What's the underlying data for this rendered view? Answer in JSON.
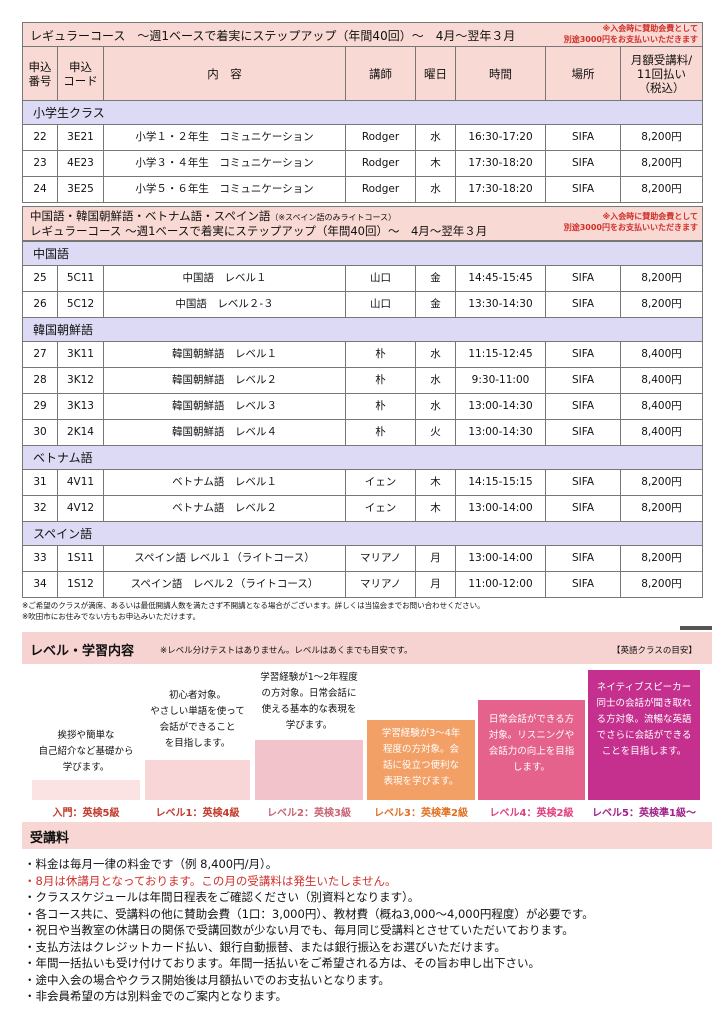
{
  "section1": {
    "title": "レギュラーコース　～週1ベースで着実にステップアップ（年間40回）～　4月～翌年３月",
    "note": [
      "※入会時に賛助会費として",
      "別途3000円をお支払いいただきます"
    ]
  },
  "columns": [
    [
      "申込",
      "番号"
    ],
    [
      "申込",
      "コード"
    ],
    [
      "内　容"
    ],
    [
      "講師"
    ],
    [
      "曜日"
    ],
    [
      "時間"
    ],
    [
      "場所"
    ],
    [
      "月額受講料/",
      "11回払い",
      "（税込）"
    ]
  ],
  "section1_groups": [
    {
      "name": "小学生クラス",
      "rows": [
        [
          "22",
          "3E21",
          "小学１・２年生　コミュニケーション",
          "Rodger",
          "水",
          "16:30-17:20",
          "SIFA",
          "8,200円"
        ],
        [
          "23",
          "4E23",
          "小学３・４年生　コミュニケーション",
          "Rodger",
          "木",
          "17:30-18:20",
          "SIFA",
          "8,200円"
        ],
        [
          "24",
          "3E25",
          "小学５・６年生　コミュニケーション",
          "Rodger",
          "水",
          "17:30-18:20",
          "SIFA",
          "8,200円"
        ]
      ]
    }
  ],
  "section2": {
    "title_line1": "中国語・韓国朝鮮語・ベトナム語・スペイン語",
    "title_aside": "（※スペイン語のみライトコース）",
    "title_line2": "レギュラーコース ～週1ベースで着実にステップアップ（年間40回）～　4月～翌年３月",
    "note": [
      "※入会時に賛助会費として",
      "別途3000円をお支払いいただきます"
    ]
  },
  "section2_groups": [
    {
      "name": "中国語",
      "rows": [
        [
          "25",
          "5C11",
          "中国語　レベル１",
          "山口",
          "金",
          "14:45-15:45",
          "SIFA",
          "8,200円"
        ],
        [
          "26",
          "5C12",
          "中国語　レベル２-３",
          "山口",
          "金",
          "13:30-14:30",
          "SIFA",
          "8,200円"
        ]
      ]
    },
    {
      "name": "韓国朝鮮語",
      "rows": [
        [
          "27",
          "3K11",
          "韓国朝鮮語　レベル１",
          "朴",
          "水",
          "11:15-12:45",
          "SIFA",
          "8,400円"
        ],
        [
          "28",
          "3K12",
          "韓国朝鮮語　レベル２",
          "朴",
          "水",
          "9:30-11:00",
          "SIFA",
          "8,400円"
        ],
        [
          "29",
          "3K13",
          "韓国朝鮮語　レベル３",
          "朴",
          "水",
          "13:00-14:30",
          "SIFA",
          "8,400円"
        ],
        [
          "30",
          "2K14",
          "韓国朝鮮語　レベル４",
          "朴",
          "火",
          "13:00-14:30",
          "SIFA",
          "8,400円"
        ]
      ]
    },
    {
      "name": "ベトナム語",
      "rows": [
        [
          "31",
          "4V11",
          "ベトナム語　レベル１",
          "イェン",
          "木",
          "14:15-15:15",
          "SIFA",
          "8,200円"
        ],
        [
          "32",
          "4V12",
          "ベトナム語　レベル２",
          "イェン",
          "木",
          "13:00-14:00",
          "SIFA",
          "8,200円"
        ]
      ]
    },
    {
      "name": "スペイン語",
      "rows": [
        [
          "33",
          "1S11",
          "スペイン語 レベル１（ライトコース）",
          "マリアノ",
          "月",
          "13:00-14:00",
          "SIFA",
          "8,200円"
        ],
        [
          "34",
          "1S12",
          "スペイン語　レベル２（ライトコース）",
          "マリアノ",
          "月",
          "11:00-12:00",
          "SIFA",
          "8,200円"
        ]
      ]
    }
  ],
  "footnotes": [
    "※ご希望のクラスが満席、あるいは最低開講人数を満たさず不開講となる場合がございます。詳しくは当協会までお問い合わせください。",
    "※吹田市にお住みでない方もお申込みいただけます。"
  ],
  "level": {
    "title": "レベル・学習内容",
    "note": "※レベル分けテストはありません。レベルはあくまでも目安です。",
    "legend": "【英語クラスの目安】",
    "steps": [
      {
        "lines": [
          "挨拶や簡単な",
          "自己紹介など基礎から",
          "学びます。"
        ],
        "label": "入門：英検5級"
      },
      {
        "lines": [
          "初心者対象。",
          "やさしい単語を使って",
          "会話ができること",
          "を目指します。"
        ],
        "label": "レベル1：英検4級"
      },
      {
        "lines": [
          "学習経験が1～2年程度",
          "の方対象。日常会話に",
          "使える基本的な表現を",
          "学びます。"
        ],
        "label": "レベル2：英検3級"
      },
      {
        "lines": [
          "学習経験が3～4年",
          "程度の方対象。会",
          "話に役立つ便利な",
          "表現を学びます。"
        ],
        "label": "レベル3：英検準2級"
      },
      {
        "lines": [
          "日常会話ができる方",
          "対象。リスニングや",
          "会話力の向上を目指",
          "します。"
        ],
        "label": "レベル4：英検2級"
      },
      {
        "lines": [
          "ネイティブスピーカー",
          "同士の会話が聞き取れ",
          "る方対象。流暢な英語",
          "でさらに会話ができる",
          "ことを目指します。"
        ],
        "label": "レベル5：英検準1級～"
      }
    ]
  },
  "fees": {
    "title": "受講料",
    "items": [
      "・料金は毎月一律の料金です（例 8,400円/月）。",
      "・8月は休講月となっております。この月の受講料は発生いたしません。",
      "・クラススケジュールは年間日程表をご確認ください（別資料となります）。",
      "・各コース共に、受講料の他に賛助会費（1口：3,000円）、教材費（概ね3,000～4,000円程度）が必要です。",
      "・祝日や当教室の休講日の関係で受講回数が少ない月でも、毎月同じ受講料とさせていただいております。",
      "・支払方法はクレジットカード払い、銀行自動振替、または銀行振込をお選びいただけます。",
      "・年間一括払いも受け付けております。年間一括払いをご希望される方は、その旨お申し出下さい。",
      "・途中入会の場合やクラス開始後は月額払いでのお支払いとなります。",
      "・非会員希望の方は別料金でのご案内となります。"
    ]
  }
}
